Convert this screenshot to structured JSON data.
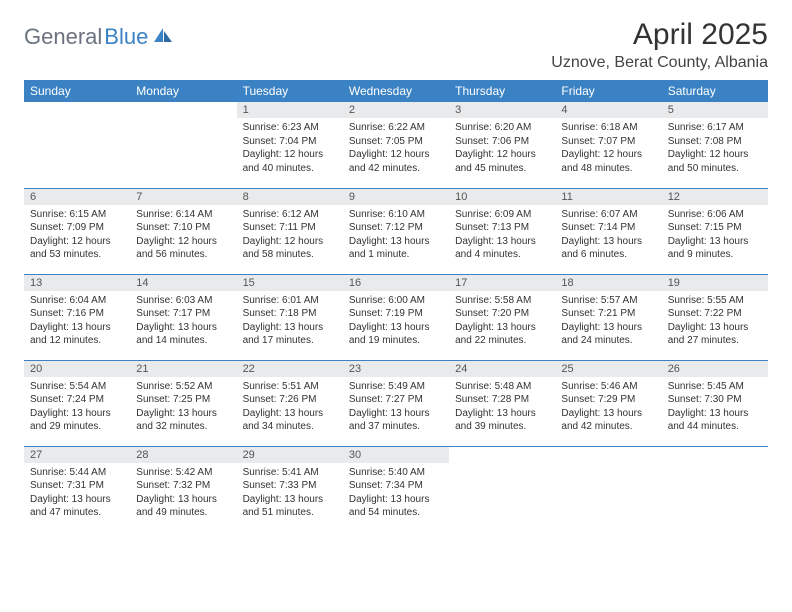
{
  "brand": {
    "text1": "General",
    "text2": "Blue"
  },
  "title": "April 2025",
  "location": "Uznove, Berat County, Albania",
  "colors": {
    "header_bg": "#3b82c4",
    "header_fg": "#ffffff",
    "daynum_bg": "#e8eaec",
    "rule": "#3b82c4",
    "logo_gray": "#6b7280",
    "logo_blue": "#3b82c4"
  },
  "weekdays": [
    "Sunday",
    "Monday",
    "Tuesday",
    "Wednesday",
    "Thursday",
    "Friday",
    "Saturday"
  ],
  "weeks": [
    [
      {
        "n": "",
        "sr": "",
        "ss": "",
        "dl": "",
        "empty": true
      },
      {
        "n": "",
        "sr": "",
        "ss": "",
        "dl": "",
        "empty": true
      },
      {
        "n": "1",
        "sr": "Sunrise: 6:23 AM",
        "ss": "Sunset: 7:04 PM",
        "dl": "Daylight: 12 hours and 40 minutes."
      },
      {
        "n": "2",
        "sr": "Sunrise: 6:22 AM",
        "ss": "Sunset: 7:05 PM",
        "dl": "Daylight: 12 hours and 42 minutes."
      },
      {
        "n": "3",
        "sr": "Sunrise: 6:20 AM",
        "ss": "Sunset: 7:06 PM",
        "dl": "Daylight: 12 hours and 45 minutes."
      },
      {
        "n": "4",
        "sr": "Sunrise: 6:18 AM",
        "ss": "Sunset: 7:07 PM",
        "dl": "Daylight: 12 hours and 48 minutes."
      },
      {
        "n": "5",
        "sr": "Sunrise: 6:17 AM",
        "ss": "Sunset: 7:08 PM",
        "dl": "Daylight: 12 hours and 50 minutes."
      }
    ],
    [
      {
        "n": "6",
        "sr": "Sunrise: 6:15 AM",
        "ss": "Sunset: 7:09 PM",
        "dl": "Daylight: 12 hours and 53 minutes."
      },
      {
        "n": "7",
        "sr": "Sunrise: 6:14 AM",
        "ss": "Sunset: 7:10 PM",
        "dl": "Daylight: 12 hours and 56 minutes."
      },
      {
        "n": "8",
        "sr": "Sunrise: 6:12 AM",
        "ss": "Sunset: 7:11 PM",
        "dl": "Daylight: 12 hours and 58 minutes."
      },
      {
        "n": "9",
        "sr": "Sunrise: 6:10 AM",
        "ss": "Sunset: 7:12 PM",
        "dl": "Daylight: 13 hours and 1 minute."
      },
      {
        "n": "10",
        "sr": "Sunrise: 6:09 AM",
        "ss": "Sunset: 7:13 PM",
        "dl": "Daylight: 13 hours and 4 minutes."
      },
      {
        "n": "11",
        "sr": "Sunrise: 6:07 AM",
        "ss": "Sunset: 7:14 PM",
        "dl": "Daylight: 13 hours and 6 minutes."
      },
      {
        "n": "12",
        "sr": "Sunrise: 6:06 AM",
        "ss": "Sunset: 7:15 PM",
        "dl": "Daylight: 13 hours and 9 minutes."
      }
    ],
    [
      {
        "n": "13",
        "sr": "Sunrise: 6:04 AM",
        "ss": "Sunset: 7:16 PM",
        "dl": "Daylight: 13 hours and 12 minutes."
      },
      {
        "n": "14",
        "sr": "Sunrise: 6:03 AM",
        "ss": "Sunset: 7:17 PM",
        "dl": "Daylight: 13 hours and 14 minutes."
      },
      {
        "n": "15",
        "sr": "Sunrise: 6:01 AM",
        "ss": "Sunset: 7:18 PM",
        "dl": "Daylight: 13 hours and 17 minutes."
      },
      {
        "n": "16",
        "sr": "Sunrise: 6:00 AM",
        "ss": "Sunset: 7:19 PM",
        "dl": "Daylight: 13 hours and 19 minutes."
      },
      {
        "n": "17",
        "sr": "Sunrise: 5:58 AM",
        "ss": "Sunset: 7:20 PM",
        "dl": "Daylight: 13 hours and 22 minutes."
      },
      {
        "n": "18",
        "sr": "Sunrise: 5:57 AM",
        "ss": "Sunset: 7:21 PM",
        "dl": "Daylight: 13 hours and 24 minutes."
      },
      {
        "n": "19",
        "sr": "Sunrise: 5:55 AM",
        "ss": "Sunset: 7:22 PM",
        "dl": "Daylight: 13 hours and 27 minutes."
      }
    ],
    [
      {
        "n": "20",
        "sr": "Sunrise: 5:54 AM",
        "ss": "Sunset: 7:24 PM",
        "dl": "Daylight: 13 hours and 29 minutes."
      },
      {
        "n": "21",
        "sr": "Sunrise: 5:52 AM",
        "ss": "Sunset: 7:25 PM",
        "dl": "Daylight: 13 hours and 32 minutes."
      },
      {
        "n": "22",
        "sr": "Sunrise: 5:51 AM",
        "ss": "Sunset: 7:26 PM",
        "dl": "Daylight: 13 hours and 34 minutes."
      },
      {
        "n": "23",
        "sr": "Sunrise: 5:49 AM",
        "ss": "Sunset: 7:27 PM",
        "dl": "Daylight: 13 hours and 37 minutes."
      },
      {
        "n": "24",
        "sr": "Sunrise: 5:48 AM",
        "ss": "Sunset: 7:28 PM",
        "dl": "Daylight: 13 hours and 39 minutes."
      },
      {
        "n": "25",
        "sr": "Sunrise: 5:46 AM",
        "ss": "Sunset: 7:29 PM",
        "dl": "Daylight: 13 hours and 42 minutes."
      },
      {
        "n": "26",
        "sr": "Sunrise: 5:45 AM",
        "ss": "Sunset: 7:30 PM",
        "dl": "Daylight: 13 hours and 44 minutes."
      }
    ],
    [
      {
        "n": "27",
        "sr": "Sunrise: 5:44 AM",
        "ss": "Sunset: 7:31 PM",
        "dl": "Daylight: 13 hours and 47 minutes."
      },
      {
        "n": "28",
        "sr": "Sunrise: 5:42 AM",
        "ss": "Sunset: 7:32 PM",
        "dl": "Daylight: 13 hours and 49 minutes."
      },
      {
        "n": "29",
        "sr": "Sunrise: 5:41 AM",
        "ss": "Sunset: 7:33 PM",
        "dl": "Daylight: 13 hours and 51 minutes."
      },
      {
        "n": "30",
        "sr": "Sunrise: 5:40 AM",
        "ss": "Sunset: 7:34 PM",
        "dl": "Daylight: 13 hours and 54 minutes."
      },
      {
        "n": "",
        "sr": "",
        "ss": "",
        "dl": "",
        "empty": true
      },
      {
        "n": "",
        "sr": "",
        "ss": "",
        "dl": "",
        "empty": true
      },
      {
        "n": "",
        "sr": "",
        "ss": "",
        "dl": "",
        "empty": true
      }
    ]
  ]
}
